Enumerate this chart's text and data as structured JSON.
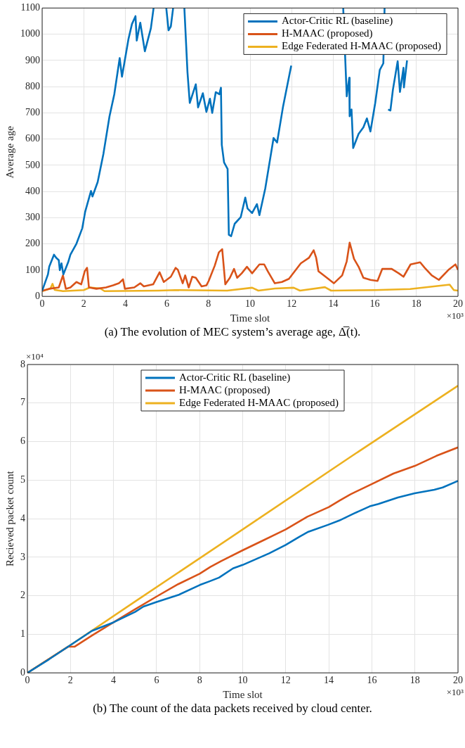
{
  "chart_data": [
    {
      "type": "line",
      "title": "(a) The evolution of MEC system’s average age, Δ̅(t).",
      "xlabel": "Time slot",
      "ylabel": "Average age",
      "annotations": [
        "×10³"
      ],
      "xlim": [
        0,
        20
      ],
      "xticks": [
        0,
        2,
        4,
        6,
        8,
        10,
        12,
        14,
        16,
        18,
        20
      ],
      "ylim": [
        0,
        1100
      ],
      "yticks": [
        0,
        100,
        200,
        300,
        400,
        500,
        600,
        700,
        800,
        900,
        1000,
        1100
      ],
      "grid": true,
      "legend": "top right",
      "marker": "none",
      "line_style": "solid",
      "series": [
        {
          "name": "Actor-Critic RL (baseline)",
          "color": "#0072bd",
          "x": [
            0,
            0.28,
            0.34,
            0.57,
            0.68,
            0.8,
            0.85,
            0.93,
            1.02,
            1.25,
            1.36,
            1.65,
            1.93,
            2.07,
            2.35,
            2.42,
            2.67,
            2.95,
            3.24,
            3.47,
            3.73,
            3.84,
            4.15,
            4.32,
            4.49,
            4.55,
            4.72,
            4.94,
            5.23,
            5.36,
            5.6,
            5.97,
            6.08,
            6.19,
            6.3,
            6.5,
            6.84,
            6.99,
            7.1,
            7.39,
            7.5,
            7.73,
            7.9,
            8.07,
            8.18,
            8.35,
            8.52,
            8.6,
            8.64,
            8.75,
            8.92,
            8.98,
            9.09,
            9.26,
            9.55,
            9.77,
            9.88,
            10.1,
            10.33,
            10.45,
            10.73,
            11.13,
            11.3,
            11.58,
            11.98,
            12.15,
            12.55,
            13.5,
            14.48,
            14.65,
            14.77,
            14.79,
            14.88,
            14.96,
            15.22,
            15.45,
            15.62,
            15.79,
            16.02,
            16.24,
            16.41,
            16.47,
            16.55,
            16.64,
            16.75,
            16.87,
            17.1,
            17.21,
            17.38,
            17.4,
            17.55
          ],
          "values": [
            21,
            84,
            113,
            159,
            147,
            138,
            100,
            126,
            84,
            130,
            159,
            201,
            260,
            323,
            402,
            381,
            436,
            545,
            687,
            771,
            909,
            838,
            981,
            1039,
            1069,
            976,
            1044,
            935,
            1023,
            1100,
            null,
            1100,
            1015,
            1030,
            1100,
            null,
            1100,
            855,
            738,
            809,
            721,
            775,
            704,
            754,
            700,
            779,
            771,
            796,
            578,
            511,
            486,
            235,
            230,
            277,
            302,
            377,
            335,
            318,
            352,
            310,
            411,
            604,
            587,
            721,
            880,
            null,
            null,
            null,
            1100,
            763,
            834,
            687,
            713,
            566,
            620,
            645,
            679,
            629,
            738,
            864,
            889,
            1100,
            null,
            713,
            709,
            788,
            897,
            780,
            872,
            797,
            900
          ]
        },
        {
          "name": "H-MAAC (proposed)",
          "color": "#d95319",
          "x": [
            0,
            0.34,
            0.8,
            1.0,
            1.14,
            1.36,
            1.65,
            1.88,
            2.05,
            2.16,
            2.25,
            2.61,
            3.07,
            3.41,
            3.69,
            3.89,
            3.98,
            4.43,
            4.72,
            4.89,
            5.34,
            5.65,
            5.85,
            6.19,
            6.42,
            6.53,
            6.76,
            6.88,
            7.05,
            7.22,
            7.39,
            7.67,
            7.9,
            8.01,
            8.3,
            8.5,
            8.66,
            8.81,
            9.03,
            9.23,
            9.38,
            9.6,
            9.85,
            10.1,
            10.45,
            10.68,
            10.85,
            11.19,
            11.53,
            11.87,
            12.44,
            12.83,
            13.06,
            13.18,
            13.29,
            13.63,
            14.03,
            14.43,
            14.65,
            14.79,
            15.0,
            15.22,
            15.45,
            15.79,
            16.13,
            16.36,
            16.81,
            17.15,
            17.38,
            17.72,
            18.18,
            18.4,
            18.74,
            19.08,
            19.54,
            19.88,
            20
          ],
          "values": [
            21,
            29,
            34,
            80,
            29,
            34,
            55,
            46,
            96,
            109,
            34,
            29,
            34,
            42,
            50,
            65,
            29,
            34,
            50,
            38,
            46,
            92,
            55,
            75,
            109,
            101,
            50,
            80,
            34,
            75,
            71,
            38,
            42,
            59,
            117,
            168,
            180,
            46,
            71,
            105,
            71,
            88,
            113,
            88,
            122,
            122,
            96,
            50,
            55,
            67,
            126,
            147,
            176,
            147,
            96,
            75,
            50,
            80,
            134,
            205,
            143,
            113,
            71,
            63,
            59,
            105,
            105,
            88,
            75,
            122,
            130,
            109,
            80,
            63,
            101,
            122,
            101
          ]
        },
        {
          "name": "Edge Federated H-MAAC (proposed)",
          "color": "#edb120",
          "x": [
            0,
            0.4,
            0.5,
            0.6,
            1.0,
            2.0,
            2.3,
            2.8,
            3.0,
            5.6,
            6.4,
            8.9,
            10.1,
            10.4,
            11.2,
            12.1,
            12.4,
            13.6,
            13.9,
            16.0,
            17.7,
            19.6,
            19.8,
            20
          ],
          "values": [
            20,
            30,
            48,
            25,
            20,
            24,
            34,
            30,
            20,
            22,
            24,
            22,
            33,
            22,
            30,
            33,
            22,
            35,
            22,
            24,
            28,
            45,
            24,
            22
          ]
        }
      ]
    },
    {
      "type": "line",
      "title": "(b) The count of the data packets received by cloud center.",
      "xlabel": "Time slot",
      "ylabel": "Recieved packet count",
      "annotations": [
        "×10⁴",
        "×10³"
      ],
      "xlim": [
        0,
        20
      ],
      "xticks": [
        0,
        2,
        4,
        6,
        8,
        10,
        12,
        14,
        16,
        18,
        20
      ],
      "ylim": [
        0,
        8
      ],
      "yticks": [
        0,
        1,
        2,
        3,
        4,
        5,
        6,
        7,
        8
      ],
      "grid": true,
      "legend": "top",
      "marker": "none",
      "line_style": "solid",
      "series": [
        {
          "name": "Actor-Critic RL (baseline)",
          "color": "#0072bd",
          "x": [
            0,
            1,
            2,
            3,
            4,
            5,
            5.39,
            6,
            7.01,
            8.01,
            8.44,
            8.9,
            9.55,
            10,
            11.23,
            12,
            12.66,
            13.05,
            13.96,
            14.48,
            15.19,
            15.9,
            16.3,
            17.21,
            17.99,
            18.9,
            19.29,
            20
          ],
          "values": [
            0,
            0.35,
            0.72,
            1.09,
            1.31,
            1.58,
            1.72,
            1.84,
            2.02,
            2.28,
            2.37,
            2.47,
            2.71,
            2.8,
            3.1,
            3.32,
            3.54,
            3.66,
            3.84,
            3.95,
            4.14,
            4.32,
            4.38,
            4.55,
            4.66,
            4.75,
            4.81,
            4.98
          ]
        },
        {
          "name": "H-MAAC (proposed)",
          "color": "#d95319",
          "x": [
            0,
            1,
            1.9,
            2.2,
            3,
            4,
            5,
            6,
            7,
            8,
            8.5,
            9,
            10,
            11,
            12,
            13,
            14,
            14.5,
            15,
            16,
            17,
            18,
            19,
            20
          ],
          "values": [
            0,
            0.36,
            0.68,
            0.68,
            0.97,
            1.31,
            1.65,
            1.98,
            2.3,
            2.57,
            2.75,
            2.9,
            3.18,
            3.45,
            3.72,
            4.05,
            4.3,
            4.47,
            4.63,
            4.9,
            5.17,
            5.37,
            5.63,
            5.85
          ]
        },
        {
          "name": "Edge Federated H-MAAC (proposed)",
          "color": "#edb120",
          "x": [
            0,
            2,
            5,
            10,
            15,
            20
          ],
          "values": [
            0,
            0.72,
            1.85,
            3.72,
            5.6,
            7.45
          ]
        }
      ]
    }
  ]
}
